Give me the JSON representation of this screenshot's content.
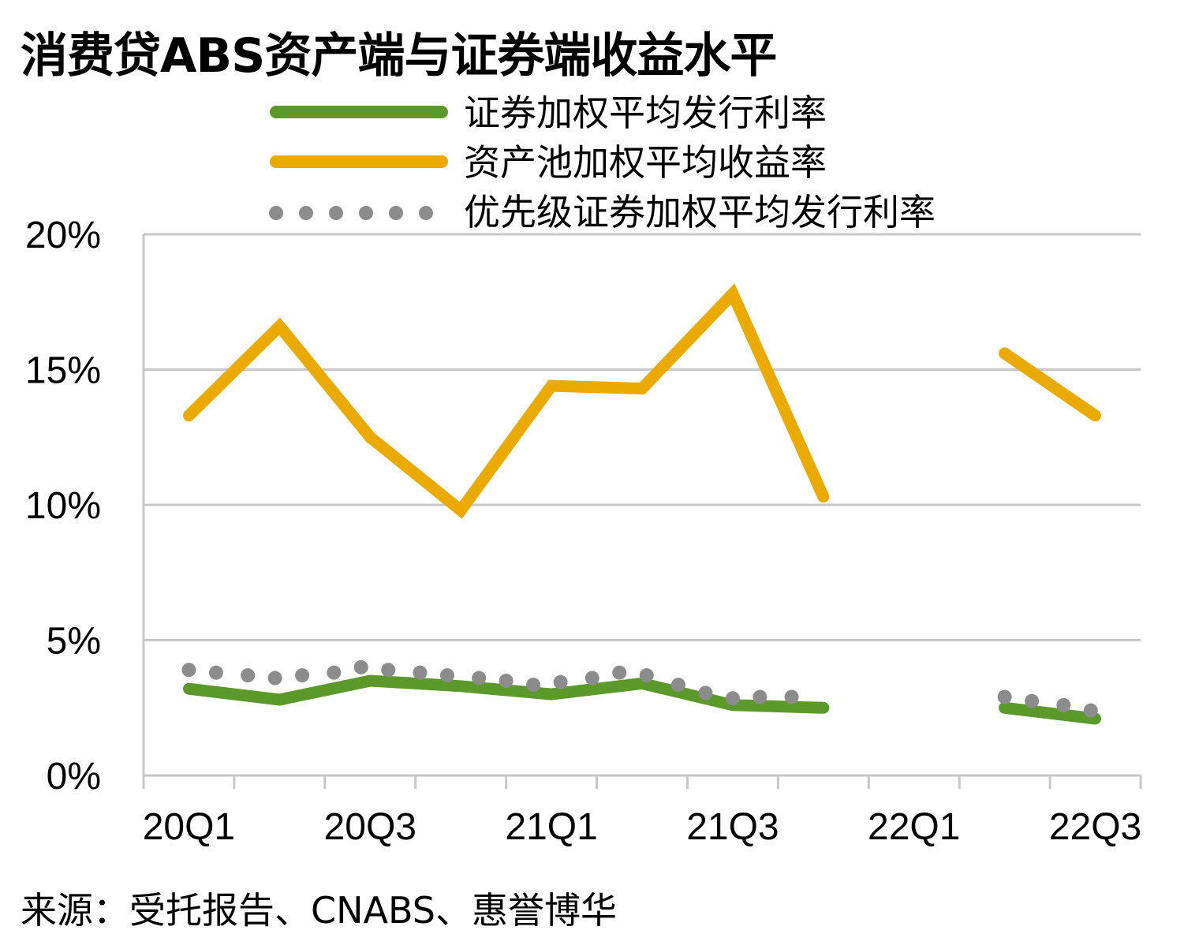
{
  "chart_data": {
    "type": "line",
    "title": "消费贷ABS资产端与证券端收益水平",
    "source": "来源：受托报告、CNABS、惠誉博华",
    "x_tick_labels": [
      "20Q1",
      "20Q3",
      "21Q1",
      "21Q3",
      "22Q1",
      "22Q3"
    ],
    "y_tick_labels": [
      "0%",
      "5%",
      "10%",
      "15%",
      "20%"
    ],
    "ylim": [
      0,
      20
    ],
    "x_range": [
      0,
      11
    ],
    "grid": true,
    "legend_position": "top",
    "series": [
      {
        "name": "证券加权平均发行利率",
        "color": "#5b9a2a",
        "style": "solid",
        "points": [
          [
            0.5,
            3.2
          ],
          [
            1.5,
            2.8
          ],
          [
            2.5,
            3.5
          ],
          [
            3.5,
            3.3
          ],
          [
            4.5,
            3.0
          ],
          [
            5.5,
            3.4
          ],
          [
            6.5,
            2.6
          ],
          [
            7.5,
            2.5
          ],
          [
            9.5,
            2.5
          ],
          [
            10.5,
            2.1
          ]
        ],
        "segments": [
          [
            0,
            8
          ],
          [
            8,
            10
          ]
        ]
      },
      {
        "name": "资产池加权平均收益率",
        "color": "#eaaa00",
        "style": "solid",
        "points": [
          [
            0.5,
            13.3
          ],
          [
            1.5,
            16.6
          ],
          [
            2.5,
            12.5
          ],
          [
            3.5,
            9.8
          ],
          [
            4.5,
            14.4
          ],
          [
            5.5,
            14.3
          ],
          [
            6.5,
            17.8
          ],
          [
            7.5,
            10.3
          ],
          [
            9.5,
            15.6
          ],
          [
            10.5,
            13.3
          ]
        ],
        "segments": [
          [
            0,
            8
          ],
          [
            8,
            10
          ]
        ]
      },
      {
        "name": "优先级证券加权平均发行利率",
        "color": "#8c8c8c",
        "style": "dotted",
        "points": [
          [
            0.5,
            3.9
          ],
          [
            0.8,
            3.8
          ],
          [
            1.15,
            3.7
          ],
          [
            1.45,
            3.6
          ],
          [
            1.75,
            3.7
          ],
          [
            2.1,
            3.8
          ],
          [
            2.4,
            4.0
          ],
          [
            2.7,
            3.9
          ],
          [
            3.05,
            3.8
          ],
          [
            3.35,
            3.7
          ],
          [
            3.7,
            3.6
          ],
          [
            4.0,
            3.5
          ],
          [
            4.3,
            3.35
          ],
          [
            4.6,
            3.45
          ],
          [
            4.95,
            3.6
          ],
          [
            5.25,
            3.8
          ],
          [
            5.55,
            3.7
          ],
          [
            5.9,
            3.35
          ],
          [
            6.2,
            3.05
          ],
          [
            6.5,
            2.85
          ],
          [
            6.8,
            2.9
          ],
          [
            7.15,
            2.9
          ],
          [
            9.5,
            2.9
          ],
          [
            9.8,
            2.75
          ],
          [
            10.15,
            2.6
          ],
          [
            10.45,
            2.4
          ]
        ]
      }
    ]
  }
}
